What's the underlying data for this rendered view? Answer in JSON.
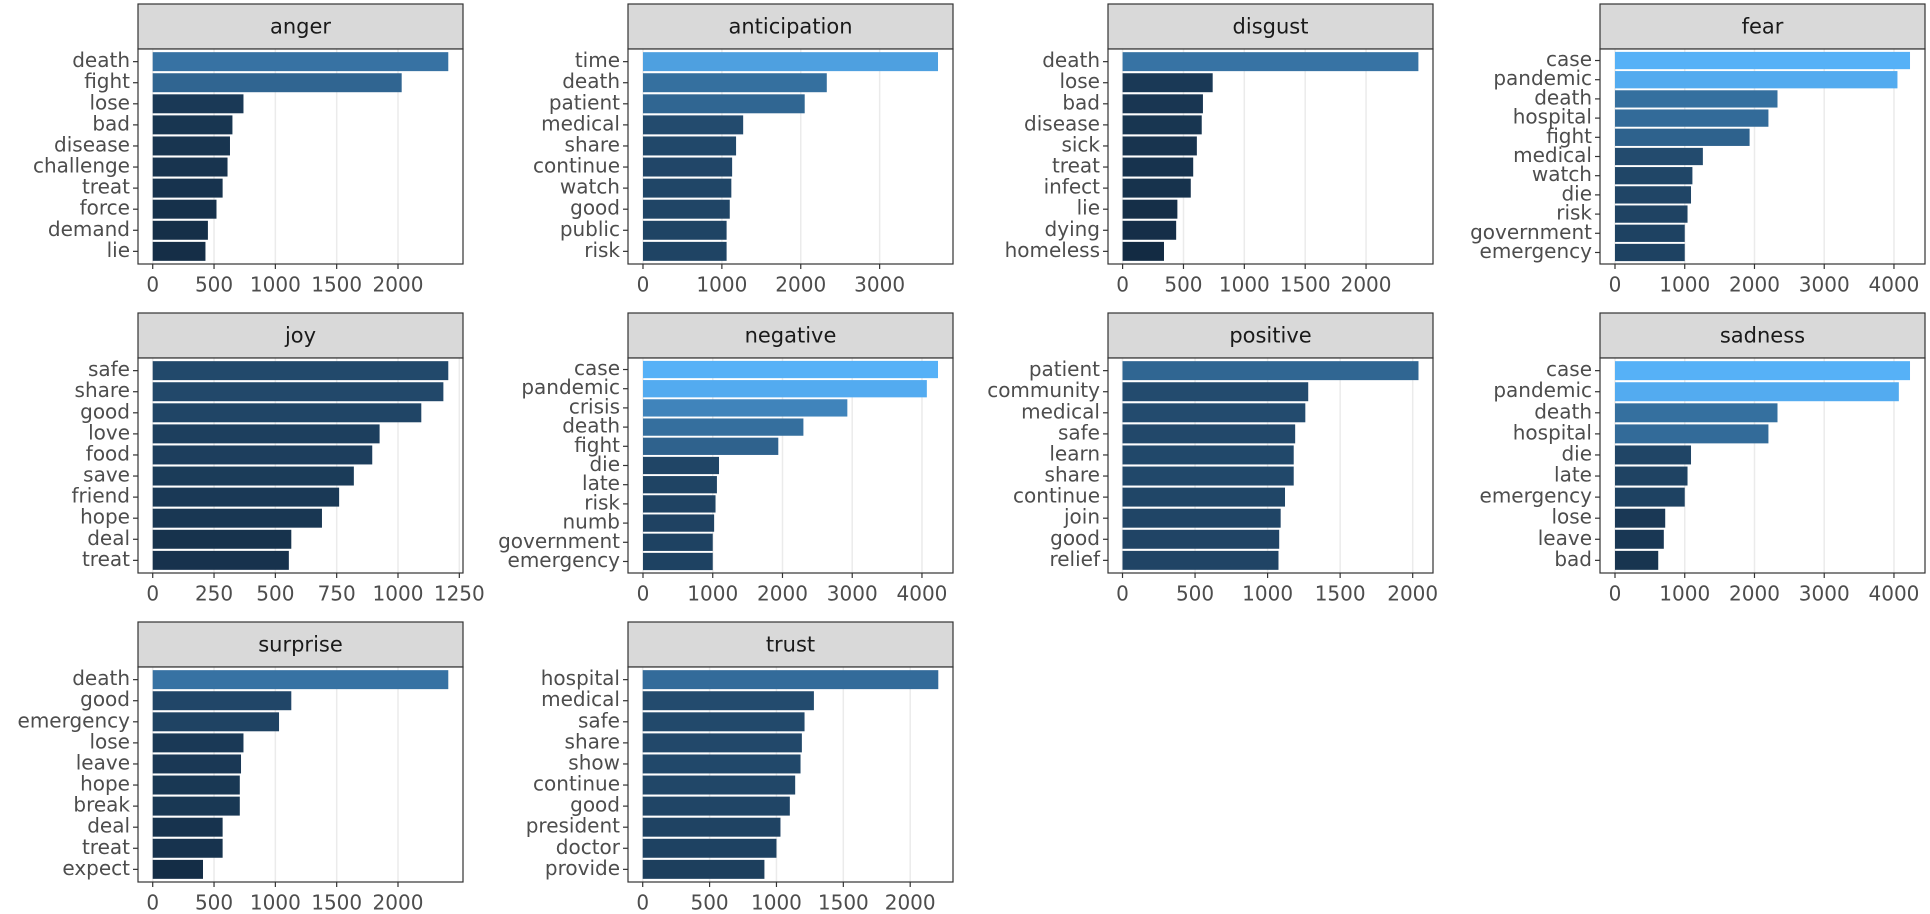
{
  "fill_gradient": {
    "low": "#132B43",
    "high": "#56B1F7"
  },
  "chart_data": [
    {
      "type": "bar",
      "orientation": "horizontal",
      "title": "anger",
      "categories": [
        "death",
        "fight",
        "lose",
        "bad",
        "disease",
        "challenge",
        "treat",
        "force",
        "demand",
        "lie"
      ],
      "values": [
        2410,
        2030,
        740,
        650,
        630,
        610,
        570,
        520,
        450,
        430
      ],
      "xlim": [
        -120,
        2530
      ],
      "xticks": [
        0,
        500,
        1000,
        1500,
        2000
      ]
    },
    {
      "type": "bar",
      "orientation": "horizontal",
      "title": "anticipation",
      "categories": [
        "time",
        "death",
        "patient",
        "medical",
        "share",
        "continue",
        "watch",
        "good",
        "public",
        "risk"
      ],
      "values": [
        3740,
        2330,
        2050,
        1270,
        1180,
        1130,
        1120,
        1100,
        1060,
        1060
      ],
      "xlim": [
        -190,
        3930
      ],
      "xticks": [
        0,
        1000,
        2000,
        3000
      ]
    },
    {
      "type": "bar",
      "orientation": "horizontal",
      "title": "disgust",
      "categories": [
        "death",
        "lose",
        "bad",
        "disease",
        "sick",
        "treat",
        "infect",
        "lie",
        "dying",
        "homeless"
      ],
      "values": [
        2430,
        740,
        660,
        650,
        610,
        580,
        560,
        450,
        440,
        340
      ],
      "xlim": [
        -120,
        2550
      ],
      "xticks": [
        0,
        500,
        1000,
        1500,
        2000
      ]
    },
    {
      "type": "bar",
      "orientation": "horizontal",
      "title": "fear",
      "categories": [
        "case",
        "pandemic",
        "death",
        "hospital",
        "fight",
        "medical",
        "watch",
        "die",
        "risk",
        "government",
        "emergency"
      ],
      "values": [
        4230,
        4050,
        2330,
        2200,
        1930,
        1260,
        1110,
        1090,
        1040,
        1000,
        1000
      ],
      "xlim": [
        -215,
        4445
      ],
      "xticks": [
        0,
        1000,
        2000,
        3000,
        4000
      ]
    },
    {
      "type": "bar",
      "orientation": "horizontal",
      "title": "joy",
      "categories": [
        "safe",
        "share",
        "good",
        "love",
        "food",
        "save",
        "friend",
        "hope",
        "deal",
        "treat"
      ],
      "values": [
        1205,
        1185,
        1095,
        925,
        895,
        820,
        760,
        690,
        565,
        555
      ],
      "xlim": [
        -60,
        1265
      ],
      "xticks": [
        0,
        250,
        500,
        750,
        1000,
        1250
      ]
    },
    {
      "type": "bar",
      "orientation": "horizontal",
      "title": "negative",
      "categories": [
        "case",
        "pandemic",
        "crisis",
        "death",
        "fight",
        "die",
        "late",
        "risk",
        "numb",
        "government",
        "emergency"
      ],
      "values": [
        4230,
        4070,
        2930,
        2300,
        1940,
        1090,
        1060,
        1040,
        1020,
        1000,
        1000
      ],
      "xlim": [
        -215,
        4445
      ],
      "xticks": [
        0,
        1000,
        2000,
        3000,
        4000
      ]
    },
    {
      "type": "bar",
      "orientation": "horizontal",
      "title": "positive",
      "categories": [
        "patient",
        "community",
        "medical",
        "safe",
        "learn",
        "share",
        "continue",
        "join",
        "good",
        "relief"
      ],
      "values": [
        2040,
        1280,
        1260,
        1190,
        1180,
        1180,
        1120,
        1090,
        1080,
        1075
      ],
      "xlim": [
        -100,
        2140
      ],
      "xticks": [
        0,
        500,
        1000,
        1500,
        2000
      ]
    },
    {
      "type": "bar",
      "orientation": "horizontal",
      "title": "sadness",
      "categories": [
        "case",
        "pandemic",
        "death",
        "hospital",
        "die",
        "late",
        "emergency",
        "lose",
        "leave",
        "bad"
      ],
      "values": [
        4230,
        4070,
        2330,
        2200,
        1090,
        1040,
        1000,
        720,
        700,
        620
      ],
      "xlim": [
        -215,
        4445
      ],
      "xticks": [
        0,
        1000,
        2000,
        3000,
        4000
      ]
    },
    {
      "type": "bar",
      "orientation": "horizontal",
      "title": "surprise",
      "categories": [
        "death",
        "good",
        "emergency",
        "lose",
        "leave",
        "hope",
        "break",
        "deal",
        "treat",
        "expect"
      ],
      "values": [
        2410,
        1130,
        1030,
        740,
        720,
        710,
        710,
        570,
        570,
        410
      ],
      "xlim": [
        -120,
        2530
      ],
      "xticks": [
        0,
        500,
        1000,
        1500,
        2000
      ]
    },
    {
      "type": "bar",
      "orientation": "horizontal",
      "title": "trust",
      "categories": [
        "hospital",
        "medical",
        "safe",
        "share",
        "show",
        "continue",
        "good",
        "president",
        "doctor",
        "provide"
      ],
      "values": [
        2210,
        1280,
        1210,
        1190,
        1180,
        1140,
        1100,
        1030,
        1000,
        910
      ],
      "xlim": [
        -110,
        2320
      ],
      "xticks": [
        0,
        500,
        1000,
        1500,
        2000
      ]
    }
  ]
}
